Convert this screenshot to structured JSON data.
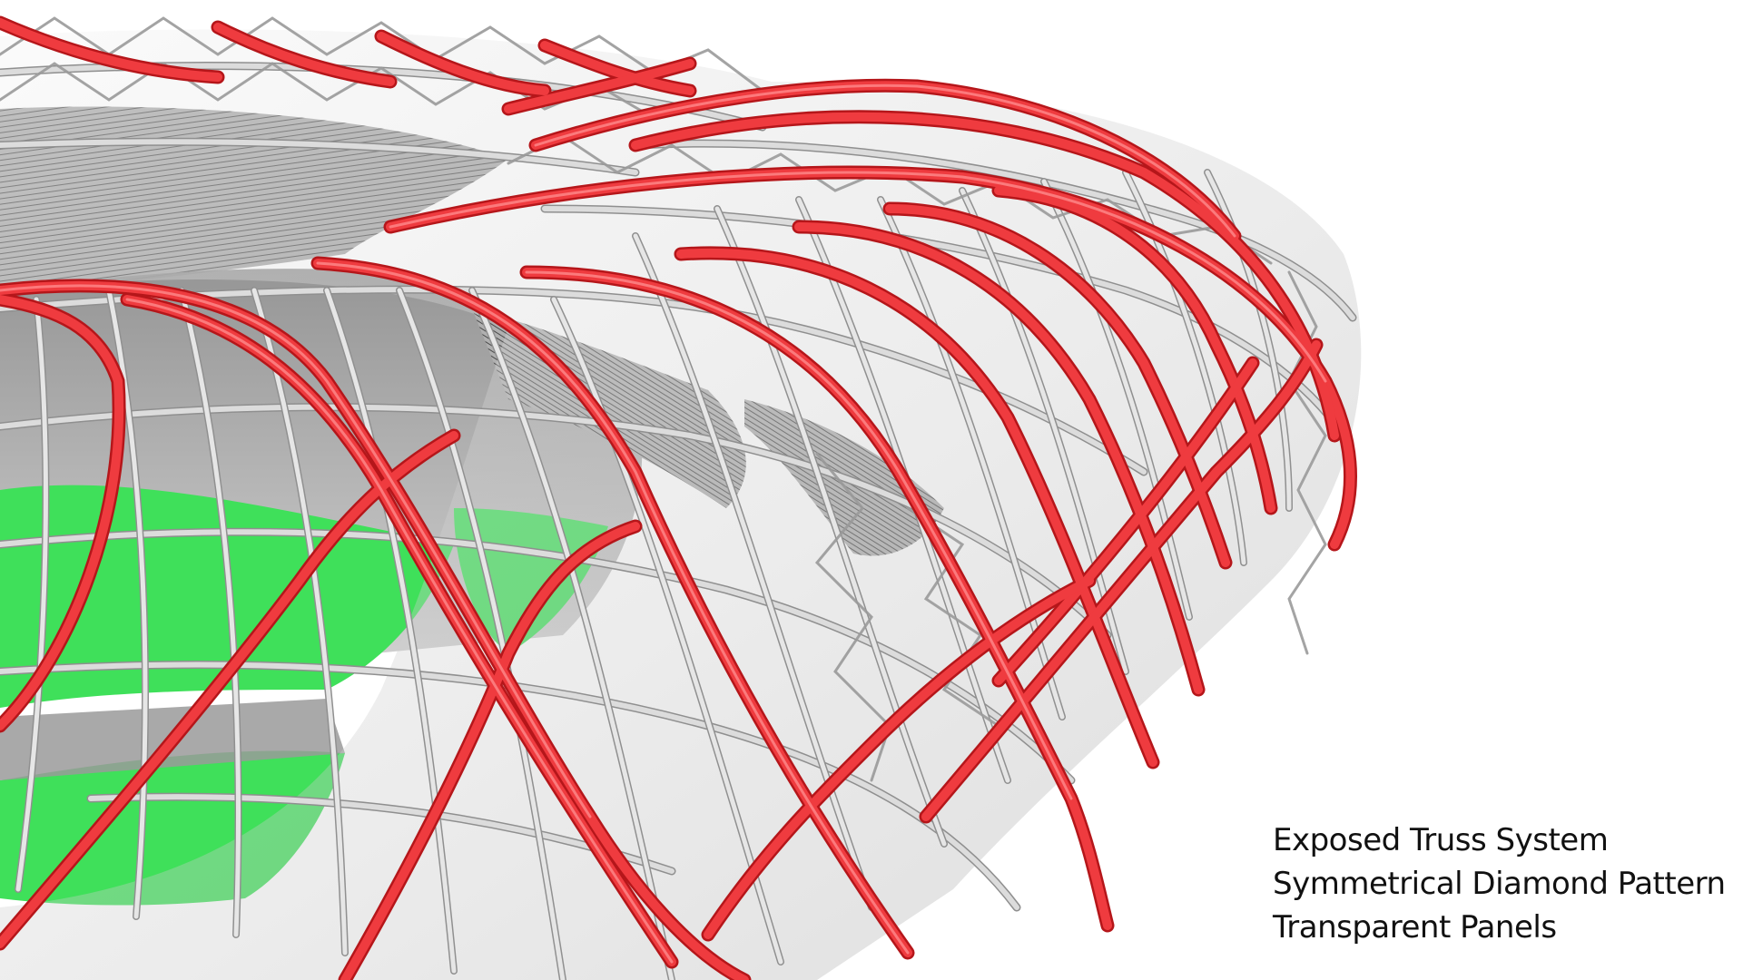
{
  "diagram": {
    "captions": [
      "Exposed Truss System",
      "Symmetrical Diamond Pattern",
      "Transparent Panels"
    ],
    "colors": {
      "background": "#ffffff",
      "primary_rib": "#e8262a",
      "primary_rib_highlight": "#ff8a8c",
      "secondary_tube": "#d9d9d9",
      "tube_shadow": "#8f8f8f",
      "pitch": "#3fe05a",
      "seating": "#6e6e6e",
      "caption_text": "#111111"
    },
    "icons": {
      "main_render": "stadium-truss-render"
    }
  }
}
